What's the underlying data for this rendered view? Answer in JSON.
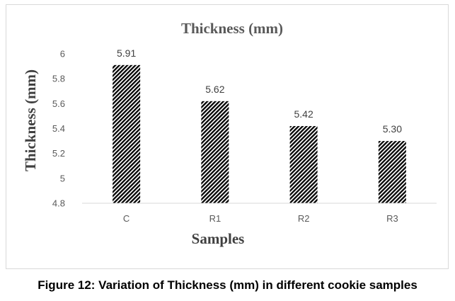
{
  "chart_data": {
    "type": "bar",
    "title": "Thickness (mm)",
    "xlabel": "Samples",
    "ylabel": "Thickness (mm)",
    "categories": [
      "C",
      "R1",
      "R2",
      "R3"
    ],
    "values": [
      5.91,
      5.62,
      5.42,
      5.3
    ],
    "data_labels": [
      "5.91",
      "5.62",
      "5.42",
      "5.30"
    ],
    "ylim": [
      4.8,
      6.0
    ],
    "yticks": [
      "4.8",
      "5",
      "5.2",
      "5.4",
      "5.6",
      "5.8",
      "6"
    ],
    "bar_fill": "diagonal-hatch",
    "bar_color": "#000000",
    "grid": false,
    "legend": "none"
  },
  "caption": "Figure 12: Variation of Thickness (mm) in different cookie samples",
  "colors": {
    "text": "#595959",
    "axis": "#d9d9d9",
    "frame": "#d9d9d9"
  }
}
